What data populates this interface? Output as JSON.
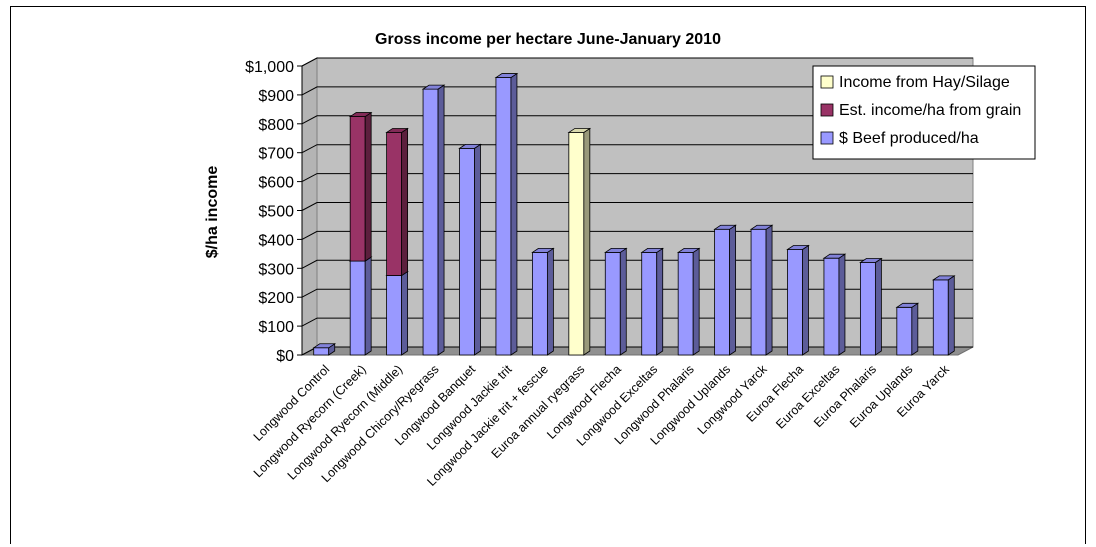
{
  "chart_data": {
    "type": "bar",
    "stacked": true,
    "three_d": true,
    "title": "Gross income per hectare June-January 2010",
    "ylabel": "$/ha income",
    "xlabel": "",
    "ylim": [
      0,
      1000
    ],
    "yticks": [
      "$0",
      "$100",
      "$200",
      "$300",
      "$400",
      "$500",
      "$600",
      "$700",
      "$800",
      "$900",
      "$1,000"
    ],
    "grid": true,
    "legend_position": "top-right",
    "categories": [
      "Longwood Control",
      "Longwood Ryecorn (Creek)",
      "Longwood Ryecorn (Middle)",
      "Longwood Chicory/Ryegrass",
      "Longwood Banquet",
      "Longwood Jackie trit",
      "Longwood Jackie trit + fescue",
      "Euroa annual ryegrass",
      "Longwood Flecha",
      "Longwood Exceltas",
      "Longwood Phalaris",
      "Longwood Uplands",
      "Longwood Yarck",
      "Euroa Flecha",
      "Euroa Exceltas",
      "Euroa Phalaris",
      "Euroa Uplands",
      "Euroa Yarck"
    ],
    "series": [
      {
        "name": "$ Beef produced/ha",
        "color": "#9999ff",
        "values": [
          25,
          325,
          275,
          920,
          715,
          960,
          355,
          0,
          355,
          355,
          355,
          435,
          435,
          365,
          335,
          320,
          165,
          260
        ]
      },
      {
        "name": "Est. income/ha from grain",
        "color": "#993366",
        "values": [
          0,
          500,
          495,
          0,
          0,
          0,
          0,
          0,
          0,
          0,
          0,
          0,
          0,
          0,
          0,
          0,
          0,
          0
        ]
      },
      {
        "name": "Income from Hay/Silage",
        "color": "#ffffcc",
        "values": [
          0,
          0,
          0,
          0,
          0,
          0,
          0,
          770,
          0,
          0,
          0,
          0,
          0,
          0,
          0,
          0,
          0,
          0
        ]
      }
    ],
    "legend_order": [
      "Income from Hay/Silage",
      "Est. income/ha from grain",
      "$ Beef produced/ha"
    ]
  }
}
